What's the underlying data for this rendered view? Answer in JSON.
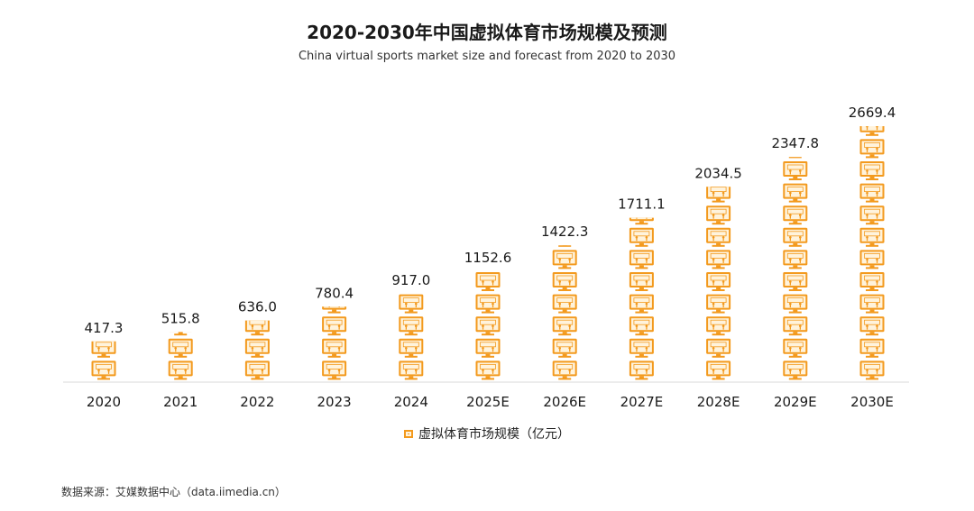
{
  "title": "2020-2030年中国虚拟体育市场规模及预测",
  "subtitle": "China virtual sports market size and forecast from 2020 to 2030",
  "legend_label": "虚拟体育市场规模（亿元）",
  "source": "数据来源：艾媒数据中心（data.iimedia.cn）",
  "icon": "tv-monitor-icon",
  "colors": {
    "accent": "#F39A1E",
    "screen": "#FFF3DC",
    "axis": "#d9d9d9",
    "text": "#1a1a1a"
  },
  "chart_data": {
    "type": "bar",
    "categories": [
      "2020",
      "2021",
      "2022",
      "2023",
      "2024",
      "2025E",
      "2026E",
      "2027E",
      "2028E",
      "2029E",
      "2030E"
    ],
    "series": [
      {
        "name": "虚拟体育市场规模（亿元）",
        "values": [
          417.3,
          515.8,
          636.0,
          780.4,
          917.0,
          1152.6,
          1422.3,
          1711.1,
          2034.5,
          2347.8,
          2669.4
        ]
      }
    ],
    "value_labels": [
      "417.3",
      "515.8",
      "636.0",
      "780.4",
      "917.0",
      "1152.6",
      "1422.3",
      "1711.1",
      "2034.5",
      "2347.8",
      "2669.4"
    ],
    "ylim": [
      0,
      2669.4
    ],
    "grid": false,
    "legend_position": "bottom"
  }
}
